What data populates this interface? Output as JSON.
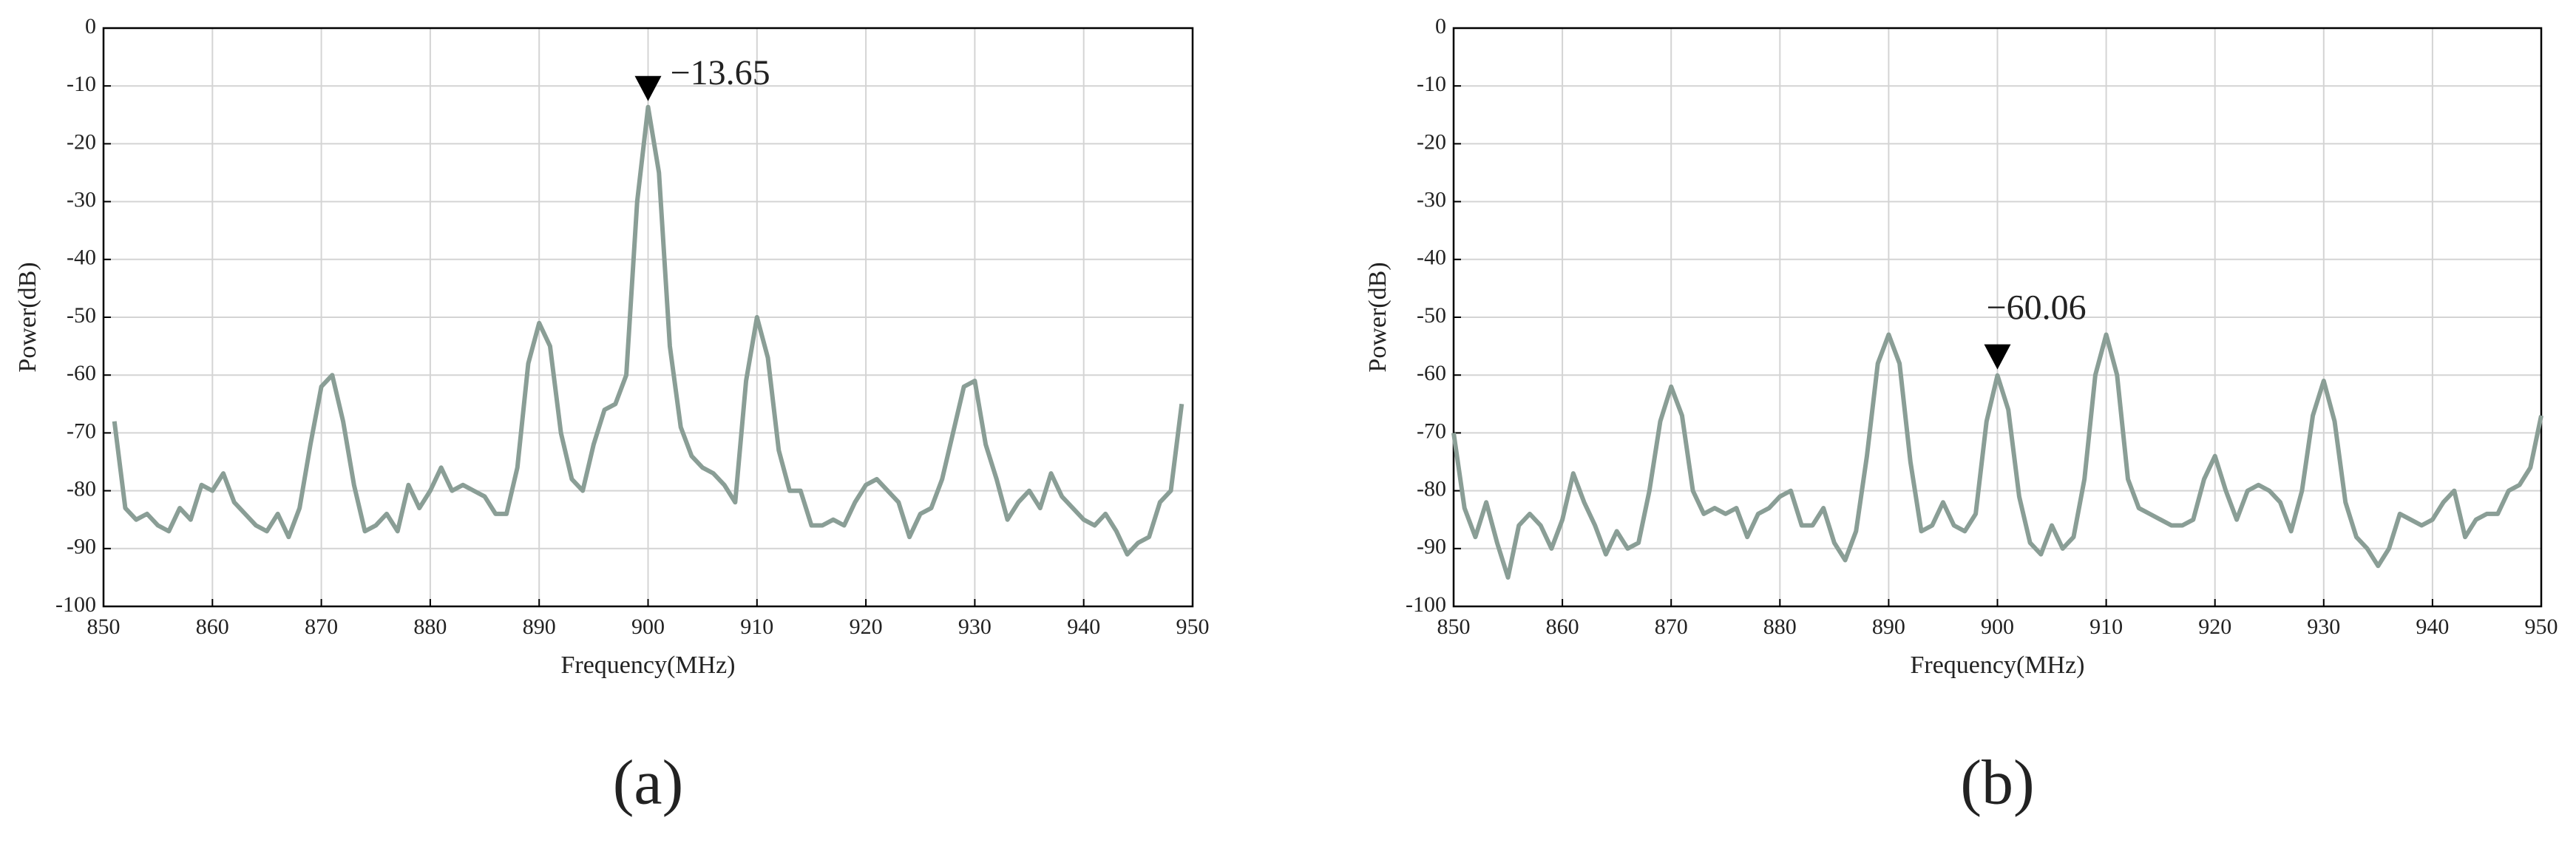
{
  "chart_data": [
    {
      "type": "line",
      "caption": "(a)",
      "xlabel": "Frequency(MHz)",
      "ylabel": "Power(dB)",
      "color": "#8a9e96",
      "grid": true,
      "xlim": [
        850,
        950
      ],
      "xticks": [
        850,
        860,
        870,
        880,
        890,
        900,
        910,
        920,
        930,
        940,
        950
      ],
      "ylim": [
        -100,
        0
      ],
      "yticks": [
        0,
        -10,
        -20,
        -30,
        -40,
        -50,
        -60,
        -70,
        -80,
        -90,
        -100
      ],
      "annotation": {
        "label": "−13.65",
        "x": 900,
        "y": -13.65
      },
      "x": [
        851,
        852,
        853,
        854,
        855,
        856,
        857,
        858,
        859,
        860,
        861,
        862,
        863,
        864,
        865,
        866,
        867,
        868,
        869,
        870,
        871,
        872,
        873,
        874,
        875,
        876,
        877,
        878,
        879,
        880,
        881,
        882,
        883,
        884,
        885,
        886,
        887,
        888,
        889,
        890,
        891,
        892,
        893,
        894,
        895,
        896,
        897,
        898,
        899,
        900,
        901,
        902,
        903,
        904,
        905,
        906,
        907,
        908,
        909,
        910,
        911,
        912,
        913,
        914,
        915,
        916,
        917,
        918,
        919,
        920,
        921,
        922,
        923,
        924,
        925,
        926,
        927,
        928,
        929,
        930,
        931,
        932,
        933,
        934,
        935,
        936,
        937,
        938,
        939,
        940,
        941,
        942,
        943,
        944,
        945,
        946,
        947,
        948,
        949
      ],
      "values": [
        -68,
        -83,
        -85,
        -84,
        -86,
        -87,
        -83,
        -85,
        -79,
        -80,
        -77,
        -82,
        -84,
        -86,
        -87,
        -84,
        -88,
        -83,
        -72,
        -62,
        -60,
        -68,
        -79,
        -87,
        -86,
        -84,
        -87,
        -79,
        -83,
        -80,
        -76,
        -80,
        -79,
        -80,
        -81,
        -84,
        -84,
        -76,
        -58,
        -51,
        -55,
        -70,
        -78,
        -80,
        -72,
        -66,
        -65,
        -60,
        -30,
        -13.65,
        -25,
        -55,
        -69,
        -74,
        -76,
        -77,
        -79,
        -82,
        -61,
        -50,
        -57,
        -73,
        -80,
        -80,
        -86,
        -86,
        -85,
        -86,
        -82,
        -79,
        -78,
        -80,
        -82,
        -88,
        -84,
        -83,
        -78,
        -70,
        -62,
        -61,
        -72,
        -78,
        -85,
        -82,
        -80,
        -83,
        -77,
        -81,
        -83,
        -85,
        -86,
        -84,
        -87,
        -91,
        -89,
        -88,
        -82,
        -80,
        -65
      ]
    },
    {
      "type": "line",
      "caption": "(b)",
      "xlabel": "Frequency(MHz)",
      "ylabel": "Power(dB)",
      "color": "#8a9e96",
      "grid": true,
      "xlim": [
        850,
        950
      ],
      "xticks": [
        850,
        860,
        870,
        880,
        890,
        900,
        910,
        920,
        930,
        940,
        950
      ],
      "ylim": [
        -100,
        0
      ],
      "yticks": [
        0,
        -10,
        -20,
        -30,
        -40,
        -50,
        -60,
        -70,
        -80,
        -90,
        -100
      ],
      "annotation": {
        "label": "−60.06",
        "x": 900,
        "y": -60.06
      },
      "x": [
        850,
        851,
        852,
        853,
        854,
        855,
        856,
        857,
        858,
        859,
        860,
        861,
        862,
        863,
        864,
        865,
        866,
        867,
        868,
        869,
        870,
        871,
        872,
        873,
        874,
        875,
        876,
        877,
        878,
        879,
        880,
        881,
        882,
        883,
        884,
        885,
        886,
        887,
        888,
        889,
        890,
        891,
        892,
        893,
        894,
        895,
        896,
        897,
        898,
        899,
        900,
        901,
        902,
        903,
        904,
        905,
        906,
        907,
        908,
        909,
        910,
        911,
        912,
        913,
        914,
        915,
        916,
        917,
        918,
        919,
        920,
        921,
        922,
        923,
        924,
        925,
        926,
        927,
        928,
        929,
        930,
        931,
        932,
        933,
        934,
        935,
        936,
        937,
        938,
        939,
        940,
        941,
        942,
        943,
        944,
        945,
        946,
        947,
        948,
        949,
        950
      ],
      "values": [
        -70,
        -83,
        -88,
        -82,
        -89,
        -95,
        -86,
        -84,
        -86,
        -90,
        -85,
        -77,
        -82,
        -86,
        -91,
        -87,
        -90,
        -89,
        -80,
        -68,
        -62,
        -67,
        -80,
        -84,
        -83,
        -84,
        -83,
        -88,
        -84,
        -83,
        -81,
        -80,
        -86,
        -86,
        -83,
        -89,
        -92,
        -87,
        -74,
        -58,
        -53,
        -58,
        -75,
        -87,
        -86,
        -82,
        -86,
        -87,
        -84,
        -68,
        -60.06,
        -66,
        -81,
        -89,
        -91,
        -86,
        -90,
        -88,
        -78,
        -60,
        -53,
        -60,
        -78,
        -83,
        -84,
        -85,
        -86,
        -86,
        -85,
        -78,
        -74,
        -80,
        -85,
        -80,
        -79,
        -80,
        -82,
        -87,
        -80,
        -67,
        -61,
        -68,
        -82,
        -88,
        -90,
        -93,
        -90,
        -84,
        -85,
        -86,
        -85,
        -82,
        -80,
        -88,
        -85,
        -84,
        -84,
        -80,
        -79,
        -76,
        -67
      ]
    }
  ]
}
